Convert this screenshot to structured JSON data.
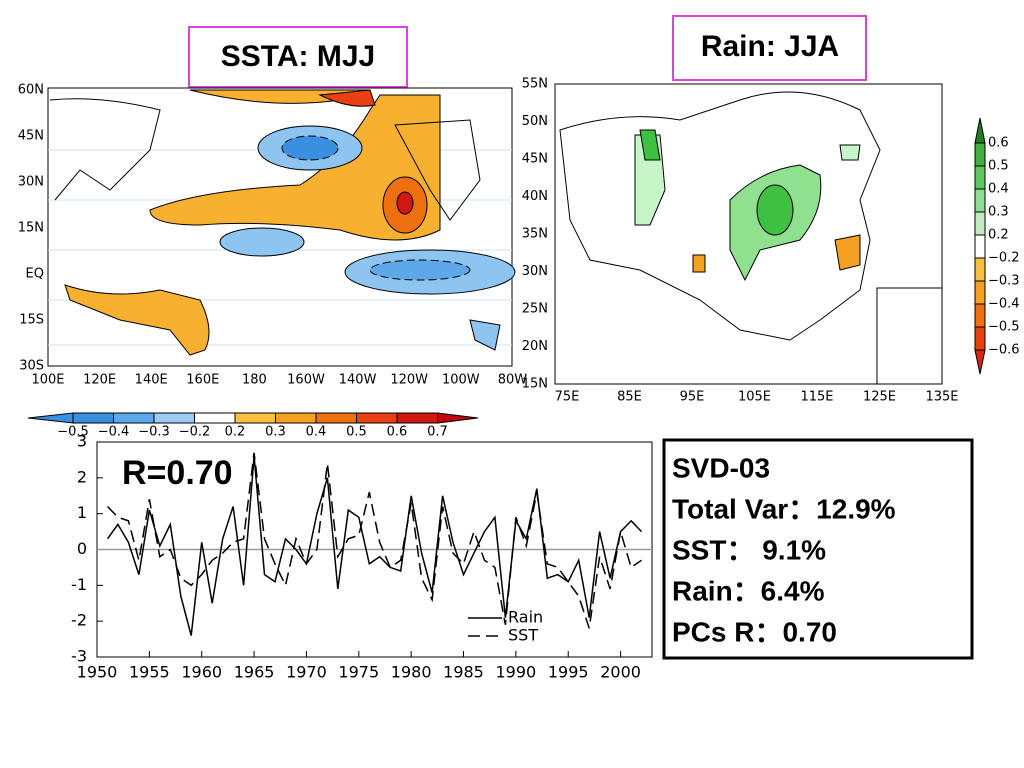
{
  "maps": [
    {
      "title": "SSTA: MJJ",
      "lat_labels": [
        "60N",
        "45N",
        "30N",
        "15N",
        "EQ",
        "15S",
        "30S"
      ],
      "lon_labels": [
        "100E",
        "120E",
        "140E",
        "160E",
        "180",
        "160W",
        "140W",
        "120W",
        "100W",
        "80W"
      ],
      "colorbar": {
        "labels": [
          "−0.5",
          "−0.4",
          "−0.3",
          "−0.2",
          "0.2",
          "0.3",
          "0.4",
          "0.5",
          "0.6",
          "0.7"
        ]
      }
    },
    {
      "title": "Rain: JJA",
      "lat_labels": [
        "55N",
        "50N",
        "45N",
        "40N",
        "35N",
        "30N",
        "25N",
        "20N",
        "15N"
      ],
      "lon_labels": [
        "75E",
        "85E",
        "95E",
        "105E",
        "115E",
        "125E",
        "135E"
      ],
      "colorbar": {
        "labels": [
          "0.6",
          "0.5",
          "0.4",
          "0.3",
          "0.2",
          "−0.2",
          "−0.3",
          "−0.4",
          "−0.5",
          "−0.6"
        ]
      }
    }
  ],
  "chart_data": {
    "type": "line",
    "annotation": "R=0.70",
    "x": [
      1951,
      1952,
      1953,
      1954,
      1955,
      1956,
      1957,
      1958,
      1959,
      1960,
      1961,
      1962,
      1963,
      1964,
      1965,
      1966,
      1967,
      1968,
      1969,
      1970,
      1971,
      1972,
      1973,
      1974,
      1975,
      1976,
      1977,
      1978,
      1979,
      1980,
      1981,
      1982,
      1983,
      1984,
      1985,
      1986,
      1987,
      1988,
      1989,
      1990,
      1991,
      1992,
      1993,
      1994,
      1995,
      1996,
      1997,
      1998,
      1999,
      2000,
      2001,
      2002
    ],
    "series": [
      {
        "name": "Rain",
        "color": "#000000",
        "dash": "none",
        "values": [
          0.3,
          0.7,
          0.2,
          -0.7,
          1.1,
          0.1,
          0.7,
          -1.3,
          -2.4,
          0.2,
          -1.5,
          0.3,
          1.2,
          -1.0,
          2.6,
          -0.7,
          -0.9,
          0.3,
          0.0,
          -0.4,
          1.0,
          2.0,
          -1.1,
          1.1,
          0.9,
          -0.4,
          -0.2,
          -0.5,
          -0.6,
          1.5,
          -0.1,
          -1.2,
          1.5,
          0.2,
          -0.7,
          -0.1,
          0.5,
          0.9,
          -1.9,
          0.8,
          0.3,
          1.7,
          -0.8,
          -0.7,
          -0.9,
          -0.3,
          -1.9,
          0.5,
          -0.8,
          0.5,
          0.8,
          0.5
        ]
      },
      {
        "name": "SST",
        "color": "#000000",
        "dash": "12 6",
        "values": [
          1.2,
          0.9,
          0.8,
          -0.3,
          1.4,
          -0.2,
          0.0,
          -0.8,
          -1.0,
          -0.7,
          -0.3,
          -0.1,
          0.2,
          0.3,
          2.7,
          0.3,
          -0.4,
          -1.0,
          0.3,
          -0.4,
          0.0,
          2.4,
          -0.2,
          0.3,
          0.4,
          1.6,
          0.2,
          -0.5,
          -0.3,
          1.3,
          -0.8,
          -1.4,
          1.2,
          -0.1,
          -0.4,
          0.5,
          -0.3,
          -0.5,
          -2.1,
          0.9,
          0.1,
          1.6,
          -0.4,
          -0.5,
          -0.9,
          -1.3,
          -2.2,
          -0.2,
          -1.1,
          0.5,
          -0.5,
          -0.3
        ]
      }
    ],
    "xlim": [
      1950,
      2003
    ],
    "xticks": [
      1950,
      1955,
      1960,
      1965,
      1970,
      1975,
      1980,
      1985,
      1990,
      1995,
      2000
    ],
    "ylim": [
      -3,
      3
    ],
    "yticks": [
      -3,
      -2,
      -1,
      0,
      1,
      2,
      3
    ],
    "zero_line_color": "#999999"
  },
  "summary": [
    "SVD-03",
    "Total Var：12.9%",
    "SST： 9.1%",
    "Rain：6.4%",
    "PCs R：0.70"
  ]
}
